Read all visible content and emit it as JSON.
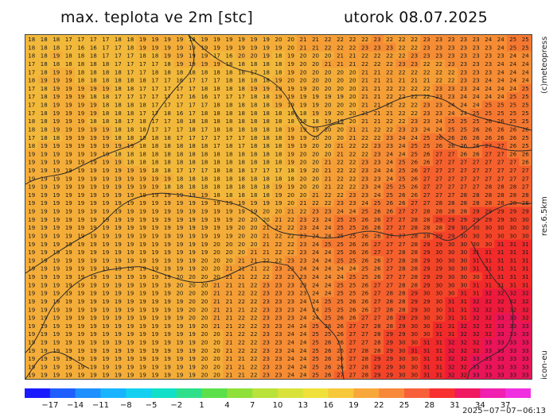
{
  "header": {
    "title": "max. teplota ve 2m [stc]",
    "date": "utorok 08.07.2025"
  },
  "side": {
    "brand": "(c)meteopress",
    "resolution": "res.6.5km",
    "model": "icon-eu"
  },
  "legend": {
    "ticks": [
      "−17",
      "−14",
      "−11",
      "−8",
      "−5",
      "−2",
      "1",
      "4",
      "7",
      "10",
      "13",
      "16",
      "19",
      "22",
      "25",
      "28",
      "31",
      "34",
      "37"
    ],
    "colors": [
      "#1a1aff",
      "#1f5fff",
      "#1e90ff",
      "#18b4ff",
      "#14d0f0",
      "#10e0c8",
      "#2ee08a",
      "#5be04a",
      "#8fe03a",
      "#b9e23a",
      "#d8e23a",
      "#f0e03a",
      "#f7c83a",
      "#f8a83a",
      "#f8883a",
      "#f8603a",
      "#f83030",
      "#f01860",
      "#f020b0",
      "#f030e0"
    ]
  },
  "footer": {
    "run_time": "2025−07−07−06:13"
  },
  "map_data": {
    "rows": [
      "18 18 18 17 17 17 17 18 18 19 19 19 19 18 19 19 19 19 19 19 20 20 21 21 22 22 22 22 23 22 22 22 23 23 23 23 23 24 24 25 25",
      "18 18 18 17 16 16 17 17 18 19 19 19 19 19 19 19 19 19 19 19 19 20 21 21 22 22 22 23 23 23 22 22 23 23 23 23 23 23 24 25 25",
      "18 18 19 18 18 18 17 17 17 18 18 19 19 19 19 17 16 20 20 19 18 19 20 20 20 21 21 22 22 22 22 23 23 23 23 23 23 23 23 24 24",
      "17 18 18 18 18 18 18 17 17 17 17 18 19 19 19 19 18 18 18 18 18 19 20 20 21 21 21 22 22 22 23 23 22 22 23 23 23 23 24 24 24",
      "17 18 19 19 18 18 18 18 17 17 18 18 18 18 18 18 18 18 17 18 18 19 20 20 20 20 20 21 21 22 22 22 22 22 22 23 23 23 24 24 24",
      "18 19 19 19 18 18 18 18 18 18 17 17 16 17 17 17 18 18 18 18 19 20 20 20 20 20 20 21 21 21 21 21 21 22 22 23 23 24 24 24 24",
      "17 18 19 19 19 19 19 18 18 17 17 17 17 17 18 18 18 18 19 19 19 19 19 20 20 20 20 21 21 22 22 22 22 23 23 23 24 24 24 24 25",
      "17 18 19 19 19 18 18 17 17 17 17 17 17 16 16 17 17 17 18 18 19 19 19 19 19 19 20 21 21 22 22 22 22 23 23 24 24 24 24 25 25",
      "17 18 19 19 19 19 18 18 18 18 17 17 17 17 17 18 18 18 18 18 19 19 19 19 20 20 20 21 21 22 22 22 23 23 24 24 24 25 25 25 25",
      "17 18 19 19 19 19 18 18 18 17 17 18 16 17 18 18 18 18 18 18 18 18 18 19 19 20 20 21 21 21 22 22 23 23 24 24 25 25 25 25 25",
      "18 18 19 19 19 18 18 18 17 18 17 17 18 18 18 18 18 18 18 18 18 18 18 18 19 19 20 21 21 22 22 23 23 24 25 25 25 26 26 25 25",
      "18 18 19 19 19 19 19 18 18 18 17 17 17 18 17 18 18 18 18 18 18 19 19 19 20 20 21 21 22 22 23 23 24 24 25 25 26 26 26 26 26",
      "17 18 18 19 19 19 19 18 18 18 18 18 17 17 17 17 17 17 18 18 18 19 19 20 20 20 21 22 22 23 24 24 25 26 26 26 26 26 26 26 25",
      "18 19 19 19 19 19 19 19 19 18 18 18 18 18 18 17 18 17 18 18 18 19 19 20 20 21 22 22 23 23 24 25 25 26 26 26 26 27 27 26 25",
      "19 19 19 19 19 19 19 18 18 18 18 18 18 18 18 18 18 18 18 18 18 19 20 20 20 21 22 22 23 24 24 25 26 27 27 26 26 27 27 26 26",
      "19 19 19 19 19 19 19 19 18 18 18 18 18 18 18 18 18 18 18 18 18 19 20 20 21 22 22 23 23 24 25 26 26 27 27 27 27 27 27 27 26",
      "19 19 19 19 19 19 19 19 19 19 18 18 17 17 17 18 18 18 17 17 17 18 19 20 21 22 22 23 24 24 25 26 27 27 27 27 27 27 27 27 27",
      "19 19 19 19 19 19 19 19 19 19 19 19 18 18 18 18 18 18 18 18 18 18 20 20 21 22 22 23 23 24 25 26 27 27 27 27 27 27 27 27 27",
      "19 19 19 19 19 19 19 19 19 19 19 18 18 18 18 18 18 18 18 18 19 19 20 20 21 22 22 23 24 25 25 26 27 27 27 27 27 28 28 28 27",
      "19 19 19 19 19 19 19 19 19 19 19 19 19 19 19 18 18 18 18 18 19 20 20 21 22 22 23 23 24 25 26 26 27 27 27 28 28 28 28 28 28",
      "19 19 19 19 19 19 19 19 19 19 19 19 19 19 19 19 19 19 19 19 19 20 21 22 22 23 23 24 25 26 26 27 27 28 28 28 28 28 28 28 28",
      "19 19 19 19 19 19 19 19 19 19 19 19 19 19 19 19 19 19 19 20 20 21 22 23 23 24 24 25 26 26 27 27 28 28 28 28 29 29 29 29 29",
      "19 19 19 19 19 19 19 19 19 19 19 19 19 19 19 19 19 20 20 20 21 22 23 23 24 25 25 26 26 27 27 28 28 29 29 29 29 29 29 30 30",
      "19 19 19 19 19 19 19 19 19 19 19 19 19 19 19 19 19 20 20 21 22 22 23 24 24 25 25 26 26 27 27 28 28 28 29 30 30 30 30 30 30",
      "19 19 19 19 19 19 19 19 19 19 19 19 19 19 19 19 19 20 20 21 22 22 23 24 24 25 25 26 26 27 27 28 28 29 29 30 30 30 30 30 30",
      "19 19 19 19 19 19 19 19 19 19 19 19 19 19 19 20 20 20 20 21 22 22 23 24 25 25 26 26 27 27 27 28 29 29 30 30 30 30 31 31 31",
      "19 19 19 19 19 19 19 19 19 19 19 19 19 19 19 20 20 20 21 21 22 22 23 24 24 25 26 26 27 27 28 28 29 30 30 30 31 31 31 31 31",
      "19 19 19 19 19 19 19 19 19 19 19 19 19 19 20 20 20 21 21 22 22 23 23 24 24 25 25 26 26 27 28 28 29 30 30 30 31 31 31 31 31",
      "19 19 19 19 19 19 19 19 19 19 19 19 19 19 20 20 21 21 21 22 23 23 24 24 24 24 24 25 26 27 28 28 29 29 30 30 31 31 31 31 31",
      "19 19 19 19 19 19 19 19 19 19 19 19 20 20 20 20 21 21 22 22 23 23 23 24 24 24 25 25 26 27 27 28 29 29 30 30 30 31 31 31 31",
      "19 19 19 19 19 19 19 19 19 19 19 19 20 20 20 21 21 21 22 23 23 23 23 24 24 25 25 26 27 27 28 28 29 30 30 30 31 31 31 31 31",
      "19 19 19 19 19 19 19 19 19 19 19 19 20 20 20 21 21 22 22 23 23 23 23 24 24 25 25 26 27 28 28 29 30 30 30 31 31 32 32 32 32",
      "19 19 19 19 19 19 19 19 19 19 19 19 19 20 20 21 21 22 22 23 23 23 24 24 25 25 26 26 27 28 28 29 29 30 31 31 32 32 32 32 32",
      "19 19 19 19 19 19 19 19 19 19 19 19 19 20 20 21 21 21 22 23 23 23 24 24 25 25 26 26 27 28 28 29 30 30 31 31 32 32 32 32 32",
      "19 19 19 19 19 19 19 19 19 19 19 19 19 20 20 21 21 22 22 23 23 23 24 24 25 26 26 27 27 28 29 29 30 30 31 31 32 32 33 33 32",
      "19 19 19 19 19 19 19 19 19 19 19 19 19 19 20 21 21 22 22 23 23 24 24 25 26 26 27 27 28 28 29 30 30 31 31 32 32 32 33 33 33",
      "19 19 19 19 19 19 19 19 19 19 19 19 19 19 20 20 21 22 22 23 23 24 24 25 25 26 27 27 28 29 29 30 30 31 31 32 32 32 33 33 33",
      "19 19 19 19 19 19 19 19 19 19 19 19 19 19 20 20 21 22 22 23 23 24 24 25 26 26 27 27 28 29 30 30 31 31 32 32 32 33 33 33 33",
      "19 19 19 19 19 19 19 19 19 19 19 19 19 19 20 20 21 22 22 23 23 24 24 25 26 26 27 28 28 29 30 31 31 31 32 32 32 33 33 33 33",
      "19 19 19 19 19 19 19 19 19 19 19 19 19 19 20 20 21 21 22 23 23 24 24 25 26 26 27 28 29 29 30 30 31 31 32 32 33 33 33 33 33",
      "19 19 19 19 19 19 19 19 19 19 19 19 19 19 20 20 21 21 22 23 23 24 24 25 26 26 27 28 29 29 30 30 31 31 32 32 33 33 33 33 33",
      "19 19 19 19 19 19 19 19 19 19 19 19 19 19 20 20 21 21 22 23 23 24 24 25 26 27 27 28 29 29 30 30 31 31 32 32 33 33 33 33 33"
    ]
  }
}
